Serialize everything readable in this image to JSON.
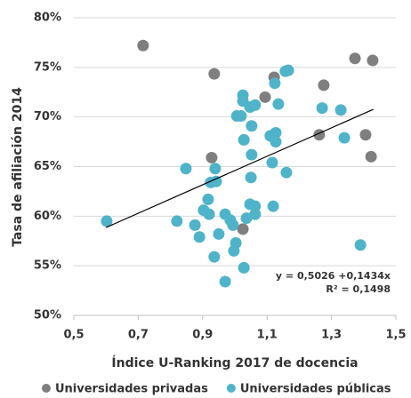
{
  "chart_data": {
    "type": "scatter",
    "xlabel": "Índice U-Ranking 2017 de docencia",
    "ylabel": "Tasa de afiliación 2014",
    "annotations": [
      "y = 0,5026 +0,1434x",
      "R² = 0,1498"
    ],
    "xlim": [
      0.5,
      1.5
    ],
    "xticks": [
      {
        "value": 0.5,
        "label": "0,5"
      },
      {
        "value": 0.7,
        "label": "0,7"
      },
      {
        "value": 0.9,
        "label": "0,9"
      },
      {
        "value": 1.1,
        "label": "1,1"
      },
      {
        "value": 1.3,
        "label": "1,3"
      },
      {
        "value": 1.5,
        "label": "1,5"
      }
    ],
    "ylim": [
      50,
      80
    ],
    "yticks": [
      {
        "value": 50,
        "label": "50%"
      },
      {
        "value": 55,
        "label": "55%"
      },
      {
        "value": 60,
        "label": "60%"
      },
      {
        "value": 65,
        "label": "65%"
      },
      {
        "value": 70,
        "label": "70%"
      },
      {
        "value": 75,
        "label": "75%"
      },
      {
        "value": 80,
        "label": "80%"
      }
    ],
    "grid": true,
    "legend": "bottom",
    "series": [
      {
        "name": "Universidades privadas",
        "color": "#7f7f7f",
        "x": [
          0.715,
          0.936,
          1.122,
          1.094,
          1.276,
          1.373,
          1.428,
          0.928,
          1.262,
          1.406,
          1.423,
          1.025
        ],
        "values": [
          77.2,
          74.35,
          74.0,
          72.0,
          73.2,
          75.9,
          75.7,
          65.9,
          68.2,
          68.2,
          66.0,
          58.7
        ]
      },
      {
        "name": "Universidades públicas",
        "color": "#4fb3c9",
        "x": [
          0.602,
          0.848,
          0.82,
          0.876,
          0.89,
          0.903,
          0.917,
          0.92,
          0.925,
          0.939,
          0.942,
          0.95,
          0.936,
          0.97,
          0.97,
          0.986,
          0.994,
          0.997,
          1.003,
          1.006,
          1.019,
          1.025,
          1.025,
          1.028,
          1.036,
          1.028,
          1.047,
          1.052,
          1.05,
          1.052,
          1.063,
          1.063,
          1.063,
          1.047,
          1.116,
          1.119,
          1.11,
          1.127,
          1.127,
          1.124,
          1.135,
          1.157,
          1.166,
          1.16,
          1.271,
          1.329,
          1.34,
          1.39
        ],
        "values": [
          59.5,
          64.8,
          59.5,
          59.1,
          57.9,
          60.6,
          61.7,
          60.2,
          63.4,
          64.8,
          63.5,
          58.2,
          55.9,
          60.2,
          53.4,
          59.6,
          59.1,
          56.5,
          57.3,
          70.1,
          70.1,
          71.6,
          72.2,
          67.7,
          59.8,
          54.8,
          61.2,
          69.1,
          63.9,
          66.2,
          60.2,
          61.0,
          71.2,
          71.0,
          65.4,
          61.0,
          68.1,
          68.4,
          67.5,
          73.4,
          71.3,
          74.6,
          74.7,
          64.4,
          70.9,
          70.7,
          67.9,
          57.1
        ]
      }
    ],
    "trendline": {
      "x": [
        0.6,
        1.43
      ],
      "values": [
        58.86,
        70.77
      ]
    }
  }
}
